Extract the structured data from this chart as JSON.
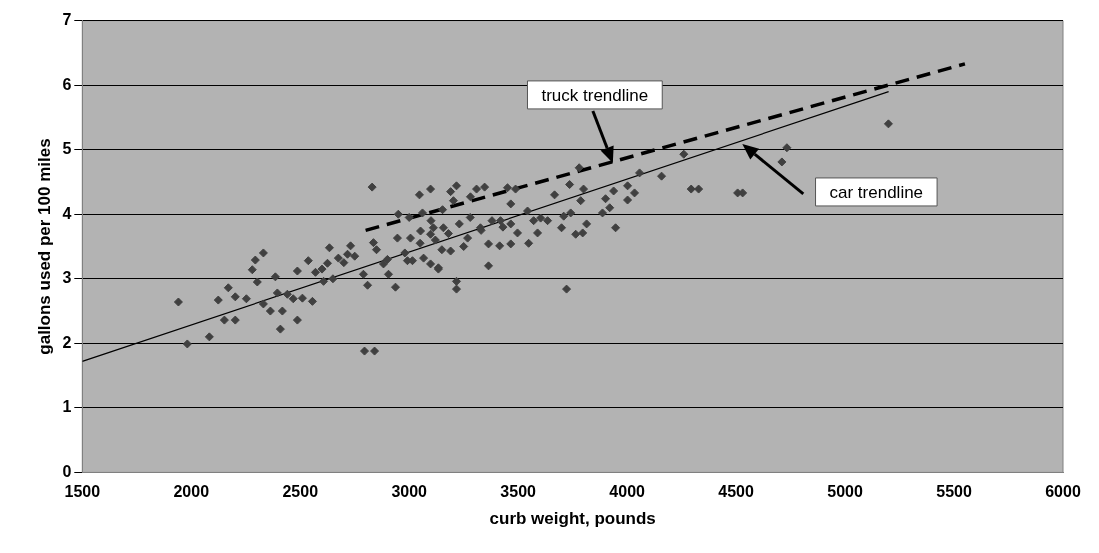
{
  "chart_data": {
    "type": "scatter",
    "xlabel": "curb weight, pounds",
    "ylabel": "gallons used per 100 miles",
    "xlim": [
      1500,
      6000
    ],
    "xticks": [
      1500,
      2000,
      2500,
      3000,
      3500,
      4000,
      4500,
      5000,
      5500,
      6000
    ],
    "ylim": [
      0,
      7
    ],
    "yticks": [
      0,
      1,
      2,
      3,
      4,
      5,
      6,
      7
    ],
    "grid": "y",
    "legend": false,
    "marker": "diamond",
    "annotations": [
      "truck trendline",
      "car trendline"
    ],
    "series": [
      {
        "type": "scatter",
        "color": "#404040",
        "x": [
          1941,
          1982,
          2083,
          2124,
          2170,
          2202,
          2152,
          2202,
          2253,
          2280,
          2294,
          2331,
          2303,
          2331,
          2363,
          2386,
          2409,
          2395,
          2418,
          2441,
          2468,
          2487,
          2487,
          2510,
          2537,
          2556,
          2570,
          2625,
          2634,
          2607,
          2675,
          2717,
          2731,
          2790,
          2809,
          2795,
          2841,
          2836,
          2882,
          2905,
          2937,
          2946,
          3015,
          3066,
          3134,
          3098,
          3157,
          3047,
          3098,
          3217,
          3190,
          3281,
          3309,
          3346,
          3451,
          3488,
          3153,
          3061,
          3203,
          3268,
          3190,
          3134,
          3217,
          3217,
          3364,
          3364,
          3415,
          3466,
          3548,
          3497,
          3589,
          3635,
          3699,
          3722,
          3764,
          3796,
          3814,
          3736,
          3667,
          3800,
          3787,
          3709,
          3741,
          3887,
          3901,
          3920,
          3947,
          3938,
          4002,
          4034,
          4002,
          4057,
          4158,
          4328,
          3466,
          3543,
          3603,
          3419,
          3327,
          3111,
          3052,
          3006,
          2992,
          3098,
          3466,
          3571,
          5199,
          4733,
          4710,
          4507,
          4530,
          4294,
          4260,
          2830,
          3780,
          3050,
          3120,
          3180,
          3230,
          3280,
          3330,
          3380,
          3430,
          3250,
          3150,
          2980,
          2900,
          2850,
          2700,
          2650,
          2600,
          2750,
          3100,
          3000,
          2950
        ],
        "values": [
          2.64,
          1.99,
          2.1,
          2.67,
          2.86,
          2.72,
          2.36,
          2.36,
          2.69,
          3.14,
          3.29,
          3.4,
          2.95,
          2.61,
          2.5,
          3.03,
          2.22,
          2.78,
          2.5,
          2.76,
          2.69,
          3.12,
          2.36,
          2.7,
          3.28,
          2.65,
          3.1,
          3.24,
          3.48,
          2.96,
          3.32,
          3.38,
          3.51,
          3.07,
          2.9,
          1.88,
          1.88,
          3.56,
          3.23,
          3.07,
          2.87,
          3.63,
          3.28,
          3.32,
          3.15,
          3.69,
          3.79,
          4.3,
          4.39,
          4.44,
          4.35,
          4.27,
          4.39,
          4.42,
          4.41,
          4.39,
          4.07,
          4.02,
          4.21,
          3.63,
          3.43,
          3.17,
          2.96,
          2.84,
          3.2,
          3.54,
          3.51,
          3.54,
          3.55,
          3.71,
          3.71,
          3.9,
          3.79,
          2.84,
          3.69,
          3.71,
          3.85,
          4.46,
          4.3,
          4.39,
          4.21,
          3.97,
          4.02,
          4.02,
          4.24,
          4.1,
          3.79,
          4.36,
          4.44,
          4.33,
          4.22,
          4.64,
          4.59,
          4.39,
          4.16,
          4.05,
          3.94,
          3.9,
          3.79,
          3.79,
          3.74,
          3.63,
          3.28,
          3.23,
          3.85,
          3.9,
          5.4,
          5.03,
          4.81,
          4.33,
          4.33,
          4.39,
          4.93,
          4.42,
          4.72,
          3.55,
          3.6,
          3.7,
          3.85,
          3.95,
          3.75,
          3.9,
          3.8,
          3.5,
          3.45,
          3.4,
          3.3,
          3.45,
          3.25,
          3,
          3.15,
          3.35,
          3.9,
          3.95,
          4
        ]
      },
      {
        "type": "line",
        "color": "#000000",
        "line_style": "dashed",
        "marker": "none",
        "x": [
          2800,
          5550
        ],
        "values": [
          3.75,
          6.33
        ]
      },
      {
        "type": "line",
        "color": "#000000",
        "line_style": "solid",
        "marker": "none",
        "x": [
          1500,
          5200
        ],
        "values": [
          1.72,
          5.9
        ]
      }
    ]
  }
}
